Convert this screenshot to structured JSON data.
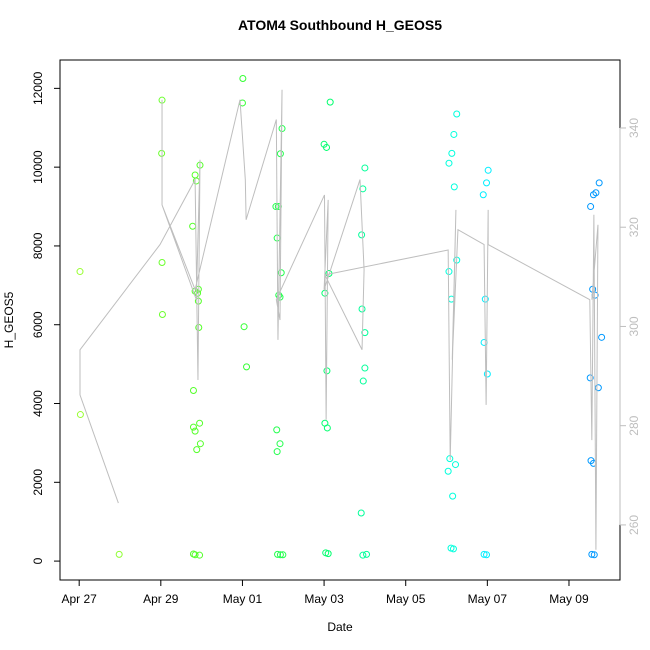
{
  "chart_data": {
    "type": "scatter",
    "title": "ATOM4 Southbound H_GEOS5",
    "xlabel": "Date",
    "ylabel": "H_GEOS5",
    "xlim": [
      -0.47,
      13.25
    ],
    "xticks": [
      {
        "value": 0,
        "label": "Apr 27"
      },
      {
        "value": 2,
        "label": "Apr 29"
      },
      {
        "value": 4,
        "label": "May 01"
      },
      {
        "value": 6,
        "label": "May 03"
      },
      {
        "value": 8,
        "label": "May 05"
      },
      {
        "value": 10,
        "label": "May 07"
      },
      {
        "value": 12,
        "label": "May 09"
      }
    ],
    "ylim": [
      -480,
      12720
    ],
    "yticks": [
      0,
      2000,
      4000,
      6000,
      8000,
      10000,
      12000
    ],
    "y2lim": [
      248.9,
      353.7
    ],
    "y2ticks": [
      260,
      280,
      300,
      320,
      340
    ],
    "series": [
      {
        "color": "#99ff33",
        "x": [
          0.02,
          0.03
        ],
        "values": [
          7350,
          3720
        ]
      },
      {
        "color": "#8fff33",
        "x": [
          0.98
        ],
        "values": [
          170
        ]
      },
      {
        "color": "#6cff2e",
        "x": [
          2.03,
          2.02,
          2.03,
          2.04
        ],
        "values": [
          11700,
          10350,
          7580,
          6260
        ]
      },
      {
        "color": "#55ff2a",
        "x": [
          2.84,
          2.87,
          2.78,
          2.84,
          2.9,
          2.92,
          2.92,
          2.93,
          2.8,
          2.8,
          2.84,
          2.95,
          2.97,
          2.88,
          2.8,
          2.84,
          2.95,
          2.96
        ],
        "values": [
          9800,
          9650,
          8500,
          6850,
          6800,
          6900,
          6600,
          5930,
          4330,
          3400,
          3300,
          3500,
          2980,
          2830,
          180,
          160,
          150,
          10050
        ]
      },
      {
        "color": "#33ff33",
        "x": [
          4.01,
          4.0,
          4.04,
          4.1
        ],
        "values": [
          12250,
          11630,
          5950,
          4930
        ]
      },
      {
        "color": "#22ff4d",
        "x": [
          4.97,
          4.93,
          4.82,
          4.88,
          4.85,
          4.95,
          4.92,
          4.89,
          4.84,
          4.92,
          4.85,
          4.86,
          4.93,
          4.99
        ],
        "values": [
          10980,
          10340,
          9000,
          9000,
          8200,
          7320,
          6700,
          6750,
          3330,
          2980,
          2780,
          170,
          160,
          160
        ]
      },
      {
        "color": "#00ff6e",
        "x": [
          6.15,
          6.0,
          6.06,
          6.12,
          6.02,
          6.07,
          6.02,
          6.08,
          6.04,
          6.1
        ],
        "values": [
          11650,
          10580,
          10500,
          7300,
          6800,
          4830,
          3500,
          3380,
          210,
          190
        ]
      },
      {
        "color": "#00ff99",
        "x": [
          7.0,
          6.95,
          6.92,
          6.93,
          7.0,
          7.0,
          6.96,
          6.91,
          6.95,
          7.04
        ],
        "values": [
          9980,
          9450,
          8280,
          6400,
          5800,
          4900,
          4570,
          1220,
          150,
          170
        ]
      },
      {
        "color": "#00ffdd",
        "x": [
          9.25,
          9.18,
          9.13,
          9.06,
          9.19,
          9.25,
          9.06,
          9.12,
          9.08,
          9.22,
          9.04,
          9.15,
          9.11,
          9.17
        ],
        "values": [
          11350,
          10830,
          10350,
          10100,
          9500,
          7640,
          7350,
          6650,
          2600,
          2450,
          2280,
          1650,
          330,
          310
        ]
      },
      {
        "color": "#00eeff",
        "x": [
          10.02,
          9.98,
          9.9,
          9.95,
          9.92,
          10.0,
          9.92,
          9.98
        ],
        "values": [
          9920,
          9600,
          9300,
          6650,
          5550,
          4750,
          170,
          160
        ]
      },
      {
        "color": "#0099ff",
        "x": [
          12.74,
          12.66,
          12.6,
          12.53,
          12.58,
          12.64,
          12.8,
          12.52,
          12.72,
          12.54,
          12.6,
          12.56,
          12.62
        ],
        "values": [
          9600,
          9350,
          9300,
          9000,
          6900,
          6750,
          5680,
          4650,
          4400,
          2550,
          2480,
          170,
          160
        ]
      },
      {
        "type": "line",
        "axis": "y2",
        "color": "#bebebe",
        "x": [
          0.96,
          0.02,
          0.02,
          1.98,
          2.84,
          2.91,
          2.96,
          2.87,
          2.03,
          2.03,
          2.03,
          2.84,
          3.94,
          4.07,
          4.09,
          4.83,
          4.87,
          4.97,
          4.92,
          4.83,
          6.01,
          6.05,
          6.1,
          6.0,
          6.88,
          6.98,
          6.93,
          6.02,
          9.04,
          9.09,
          9.23,
          9.14,
          9.28,
          9.92,
          9.97,
          10.02,
          10.02,
          12.51,
          12.56,
          12.61,
          12.66,
          12.71,
          12.56
        ],
        "values": [
          264.4,
          286.2,
          295.3,
          316.5,
          329.6,
          289.2,
          333.6,
          305.4,
          324.5,
          345.7,
          324.5,
          307.4,
          345.7,
          329.6,
          321.5,
          341.7,
          297.3,
          347.7,
          301.3,
          305.4,
          326.5,
          281.2,
          325.5,
          307.4,
          329.6,
          311.4,
          295.3,
          310.4,
          315.4,
          273.1,
          323.5,
          293.3,
          319.5,
          316.5,
          284.2,
          323.5,
          316.5,
          305.4,
          277.1,
          322.5,
          255.0,
          320.5,
          305.4
        ]
      }
    ]
  }
}
